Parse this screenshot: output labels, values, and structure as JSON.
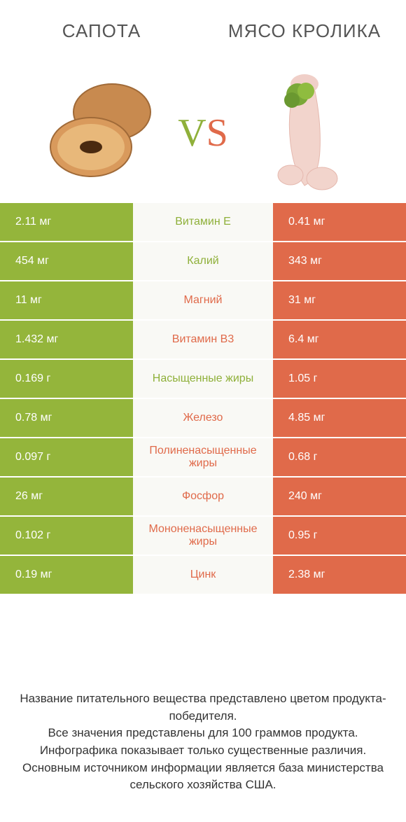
{
  "header": {
    "left": "САПОТА",
    "right": "МЯСО КРОЛИКА"
  },
  "vs": {
    "v": "V",
    "s": "S"
  },
  "colors": {
    "left_bg": "#94b53b",
    "right_bg": "#e06a4a",
    "mid_bg": "#f9f9f5",
    "left_text": "#8fb03a",
    "right_text": "#e06a4a"
  },
  "rows": [
    {
      "label": "Витамин E",
      "left": "2.11 мг",
      "right": "0.41 мг",
      "winner": "left"
    },
    {
      "label": "Калий",
      "left": "454 мг",
      "right": "343 мг",
      "winner": "left"
    },
    {
      "label": "Магний",
      "left": "11 мг",
      "right": "31 мг",
      "winner": "right"
    },
    {
      "label": "Витамин B3",
      "left": "1.432 мг",
      "right": "6.4 мг",
      "winner": "right"
    },
    {
      "label": "Насыщенные жиры",
      "left": "0.169 г",
      "right": "1.05 г",
      "winner": "left"
    },
    {
      "label": "Железо",
      "left": "0.78 мг",
      "right": "4.85 мг",
      "winner": "right"
    },
    {
      "label": "Полиненасыщенные жиры",
      "left": "0.097 г",
      "right": "0.68 г",
      "winner": "right"
    },
    {
      "label": "Фосфор",
      "left": "26 мг",
      "right": "240 мг",
      "winner": "right"
    },
    {
      "label": "Мононенасыщенные жиры",
      "left": "0.102 г",
      "right": "0.95 г",
      "winner": "right"
    },
    {
      "label": "Цинк",
      "left": "0.19 мг",
      "right": "2.38 мг",
      "winner": "right"
    }
  ],
  "footer": {
    "line1": "Название питательного вещества представлено цветом продукта-победителя.",
    "line2": "Все значения представлены для 100 граммов продукта.",
    "line3": "Инфографика показывает только существенные различия.",
    "line4": "Основным источником информации является база министерства сельского хозяйства США."
  }
}
